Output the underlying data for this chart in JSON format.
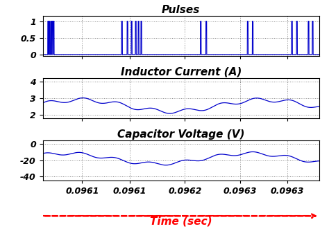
{
  "title_pulses": "Pulses",
  "title_inductor": "Inductor Current (A)",
  "title_capacitor": "Capacitor Voltage (V)",
  "xlabel": "Time (sec)",
  "xlim": [
    0.096,
    0.09635
  ],
  "xtick_positions": [
    0.09605,
    0.09611,
    0.09618,
    0.09625,
    0.09631
  ],
  "xtick_labels": [
    "0.0961",
    "0.0961",
    "0.0962",
    "0.0963",
    "0.0963"
  ],
  "pulse_ylim": [
    -0.05,
    1.15
  ],
  "pulse_yticks": [
    0,
    0.5,
    1
  ],
  "pulse_ytick_labels": [
    "0",
    "0.5",
    "1"
  ],
  "inductor_ylim": [
    1.8,
    4.2
  ],
  "inductor_yticks": [
    2,
    3,
    4
  ],
  "inductor_ytick_labels": [
    "2",
    "3",
    "4"
  ],
  "cap_ylim": [
    -45,
    5
  ],
  "cap_yticks": [
    -40,
    -20,
    0
  ],
  "cap_ytick_labels": [
    "-40",
    "-20",
    "0"
  ],
  "line_color": "#0000CC",
  "grid_color": "#888888",
  "title_fontsize": 11,
  "tick_fontsize": 9,
  "xlabel_fontsize": 11,
  "bg_color": "#ffffff"
}
